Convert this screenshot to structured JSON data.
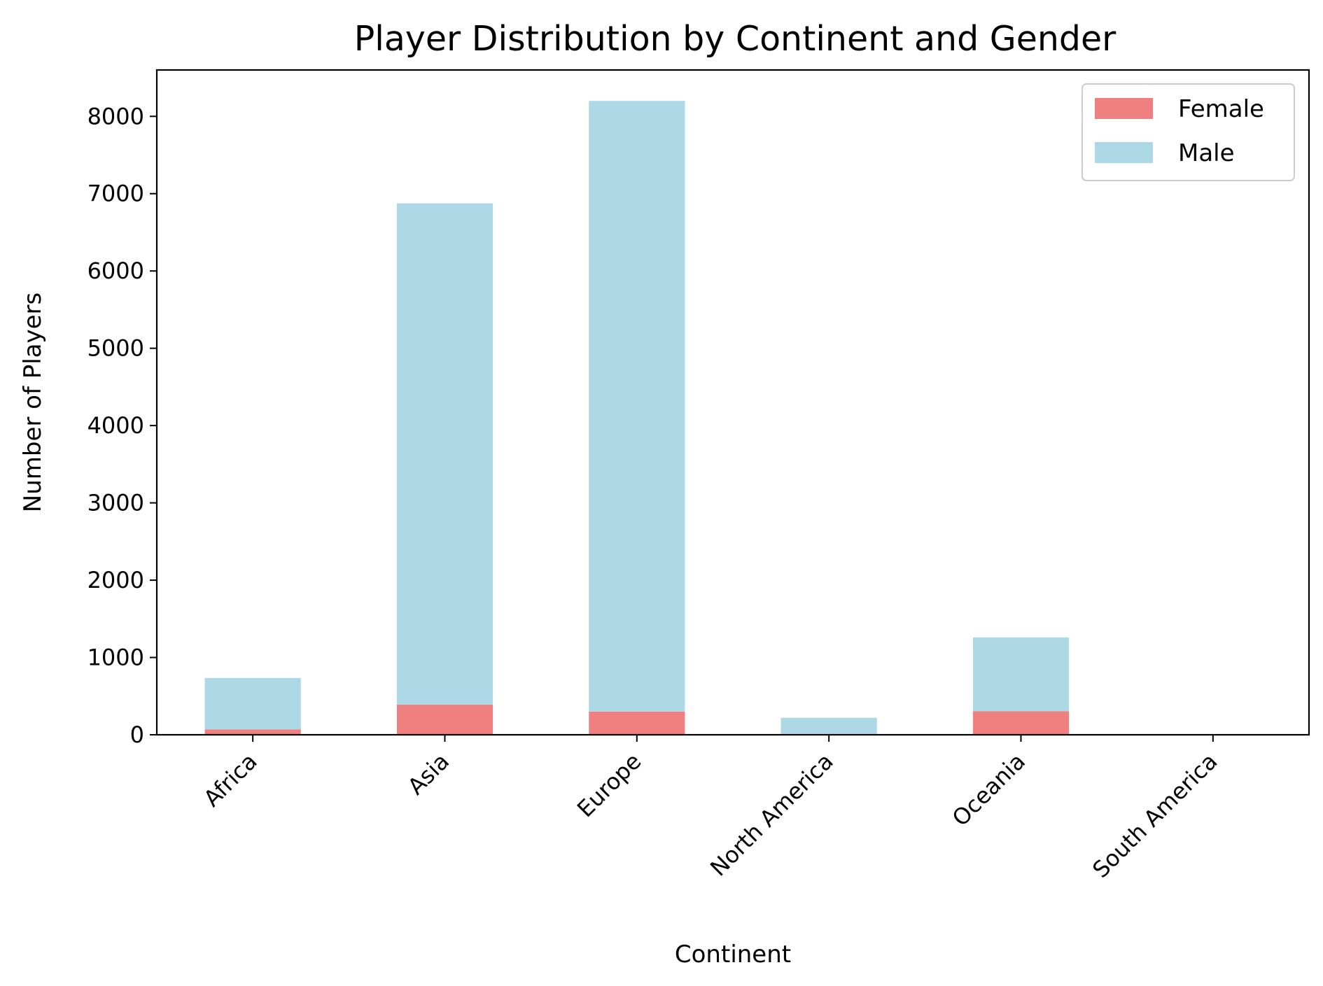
{
  "chart_data": {
    "type": "bar",
    "stacked": true,
    "title": "Player Distribution by Continent and Gender",
    "xlabel": "Continent",
    "ylabel": "Number of Players",
    "categories": [
      "Africa",
      "Asia",
      "Europe",
      "North America",
      "Oceania",
      "South America"
    ],
    "series": [
      {
        "name": "Female",
        "color": "#f08080",
        "values": [
          70,
          390,
          300,
          10,
          305,
          0
        ]
      },
      {
        "name": "Male",
        "color": "#add8e6",
        "values": [
          665,
          6485,
          7900,
          210,
          955,
          0
        ]
      }
    ],
    "ylim": [
      0,
      8600
    ],
    "yticks": [
      0,
      1000,
      2000,
      3000,
      4000,
      5000,
      6000,
      7000,
      8000
    ],
    "legend_position": "top-right",
    "grid": false
  }
}
